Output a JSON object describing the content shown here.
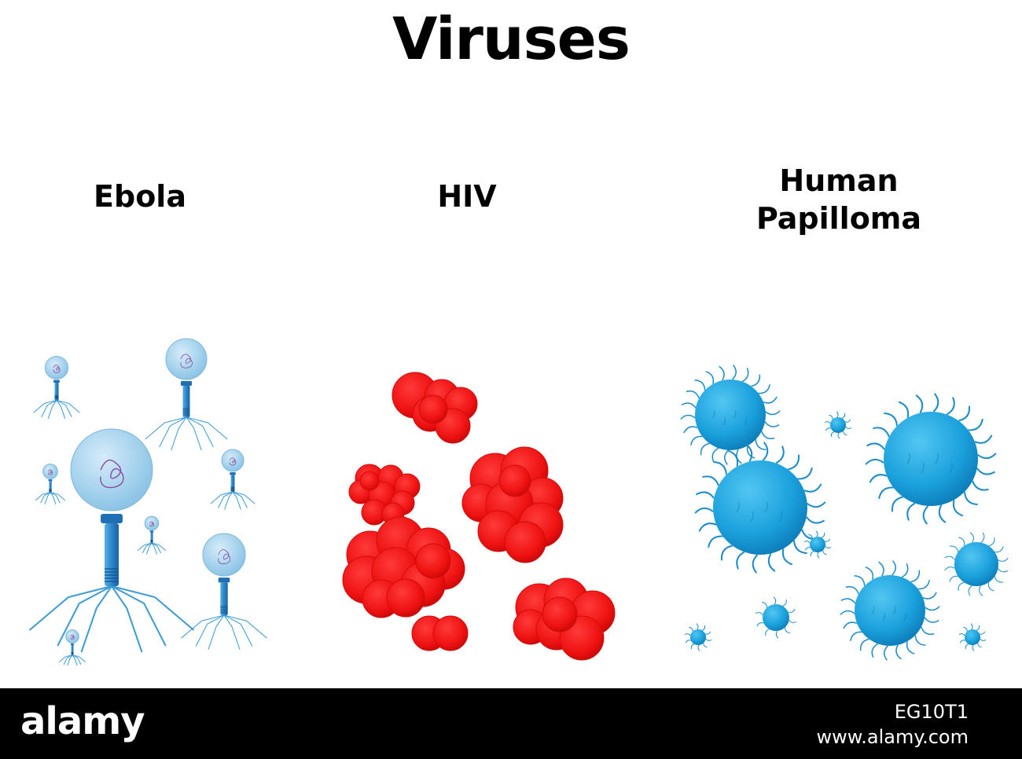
{
  "title": "Viruses",
  "labels": {
    "ebola": "Ebola",
    "hiv": "HIV",
    "hpv_line1": "Human",
    "hpv_line2": "Papilloma"
  },
  "footer": {
    "brand": "alamy",
    "image_id": "EG10T1",
    "url": "www.alamy.com"
  },
  "colors": {
    "ebola_head": "#a8d4ee",
    "ebola_tail": "#2a86c8",
    "hiv": "#ee1111",
    "hpv": "#1aa0dc"
  }
}
